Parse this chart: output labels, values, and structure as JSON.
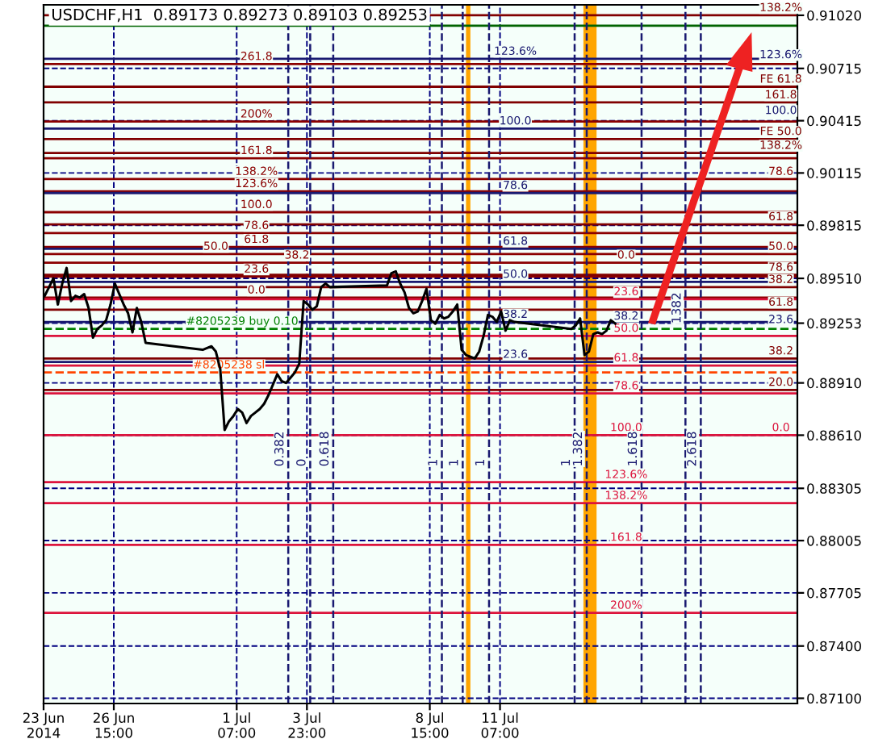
{
  "chart_data": {
    "type": "line",
    "title": "USDCHF,H1  0.89173 0.89273 0.89103 0.89253",
    "x": [
      "2014-06-24T00:00",
      "2014-06-24T04:00",
      "2014-06-24T08:00",
      "2014-06-24T12:00",
      "2014-06-24T16:00",
      "2014-06-24T20:00",
      "2014-06-25T00:00",
      "2014-06-25T04:00",
      "2014-06-25T08:00",
      "2014-06-25T12:00",
      "2014-06-25T16:00",
      "2014-06-25T20:00",
      "2014-06-26T00:00",
      "2014-06-26T04:00",
      "2014-06-26T08:00",
      "2014-06-26T12:00",
      "2014-06-26T16:00",
      "2014-06-26T20:00",
      "2014-06-27T00:00",
      "2014-06-27T04:00",
      "2014-06-27T08:00",
      "2014-06-27T12:00",
      "2014-06-27T16:00",
      "2014-06-27T20:00",
      "2014-06-30T00:00",
      "2014-06-30T04:00",
      "2014-06-30T08:00",
      "2014-06-30T12:00",
      "2014-06-30T16:00",
      "2014-06-30T20:00",
      "2014-07-01T00:00",
      "2014-07-01T04:00",
      "2014-07-01T08:00",
      "2014-07-01T12:00",
      "2014-07-01T16:00",
      "2014-07-01T20:00",
      "2014-07-02T00:00",
      "2014-07-02T04:00",
      "2014-07-02T08:00",
      "2014-07-02T12:00",
      "2014-07-02T16:00",
      "2014-07-02T20:00",
      "2014-07-03T00:00",
      "2014-07-03T04:00",
      "2014-07-03T08:00",
      "2014-07-03T12:00",
      "2014-07-03T16:00",
      "2014-07-03T20:00",
      "2014-07-04T00:00",
      "2014-07-04T04:00",
      "2014-07-04T08:00",
      "2014-07-04T12:00",
      "2014-07-04T16:00",
      "2014-07-04T20:00",
      "2014-07-07T00:00",
      "2014-07-07T04:00",
      "2014-07-07T08:00",
      "2014-07-07T12:00",
      "2014-07-07T16:00",
      "2014-07-07T20:00",
      "2014-07-08T00:00",
      "2014-07-08T04:00",
      "2014-07-08T08:00",
      "2014-07-08T12:00",
      "2014-07-08T16:00",
      "2014-07-08T20:00",
      "2014-07-09T00:00",
      "2014-07-09T04:00",
      "2014-07-09T08:00",
      "2014-07-09T12:00",
      "2014-07-09T16:00",
      "2014-07-09T20:00",
      "2014-07-10T00:00",
      "2014-07-10T04:00",
      "2014-07-10T08:00",
      "2014-07-10T12:00",
      "2014-07-10T16:00",
      "2014-07-10T20:00",
      "2014-07-11T00:00",
      "2014-07-11T04:00",
      "2014-07-11T08:00",
      "2014-07-11T12:00",
      "2014-07-11T16:00",
      "2014-07-11T20:00",
      "2014-07-14T00:00",
      "2014-07-14T04:00",
      "2014-07-14T08:00",
      "2014-07-14T12:00",
      "2014-07-14T16:00",
      "2014-07-14T20:00",
      "2014-07-15T00:00",
      "2014-07-15T04:00",
      "2014-07-15T08:00",
      "2014-07-15T12:00",
      "2014-07-15T16:00"
    ],
    "series": [
      {
        "color": "#000000",
        "values": [
          0.8941,
          0.8946,
          0.8951,
          0.8936,
          0.8948,
          0.8957,
          0.8938,
          0.8941,
          0.894,
          0.8942,
          0.8934,
          0.8917,
          0.8922,
          0.8924,
          0.8927,
          0.8936,
          0.8948,
          0.8942,
          0.8936,
          0.8931,
          0.892,
          0.8934,
          0.8926,
          0.8914,
          0.891,
          0.8911,
          0.8912,
          0.8909,
          0.8899,
          0.8864,
          0.8869,
          0.8872,
          0.8876,
          0.8874,
          0.8868,
          0.8872,
          0.8874,
          0.8876,
          0.8879,
          0.8884,
          0.889,
          0.8896,
          0.8892,
          0.8891,
          0.8894,
          0.8897,
          0.8902,
          0.8938,
          0.8936,
          0.8933,
          0.8935,
          0.8946,
          0.8948,
          0.8946,
          0.8947,
          0.8954,
          0.8955,
          0.8948,
          0.8943,
          0.8934,
          0.8931,
          0.8932,
          0.8938,
          0.8945,
          0.8927,
          0.8925,
          0.893,
          0.8928,
          0.8929,
          0.8932,
          0.8936,
          0.891,
          0.8907,
          0.8906,
          0.8905,
          0.8909,
          0.8918,
          0.893,
          0.8929,
          0.8926,
          0.8932,
          0.8921,
          0.8927,
          0.8926,
          0.8922,
          0.8924,
          0.8928,
          0.8907,
          0.8909,
          0.8919,
          0.892,
          0.8919,
          0.8921,
          0.8927,
          0.8925
        ]
      }
    ],
    "xlim": [
      "2014-06-23T23:00",
      "2014-07-22T14:00"
    ],
    "ylim": [
      0.8707,
      0.9108
    ],
    "xticks": [
      {
        "value": "2014-06-23T23:00",
        "label": "23 Jun 2014"
      },
      {
        "value": "2014-06-26T15:00",
        "label": "26 Jun 15:00"
      },
      {
        "value": "2014-07-01T07:00",
        "label": "1 Jul 07:00"
      },
      {
        "value": "2014-07-03T23:00",
        "label": "3 Jul 23:00"
      },
      {
        "value": "2014-07-08T15:00",
        "label": "8 Jul 15:00"
      },
      {
        "value": "2014-07-11T07:00",
        "label": "11 Jul 07:00"
      }
    ],
    "yticks": [
      {
        "value": 0.9102,
        "label": "0.91020"
      },
      {
        "value": 0.90715,
        "label": "0.90715"
      },
      {
        "value": 0.90415,
        "label": "0.90415"
      },
      {
        "value": 0.90115,
        "label": "0.90115"
      },
      {
        "value": 0.89815,
        "label": "0.89815"
      },
      {
        "value": 0.8951,
        "label": "0.89510"
      },
      {
        "value": 0.89253,
        "label": "0.89253"
      },
      {
        "value": 0.8891,
        "label": "0.88910"
      },
      {
        "value": 0.8861,
        "label": "0.88610"
      },
      {
        "value": 0.88305,
        "label": "0.88305"
      },
      {
        "value": 0.88005,
        "label": "0.88005"
      },
      {
        "value": 0.87705,
        "label": "0.87705"
      },
      {
        "value": 0.874,
        "label": "0.87400"
      },
      {
        "value": 0.871,
        "label": "0.87100"
      }
    ],
    "grid": true,
    "ref_lines": [
      {
        "axis": "y",
        "value": 0.9074,
        "color": "#8b0000"
      },
      {
        "axis": "y",
        "value": 0.9041,
        "color": "#8b0000"
      },
      {
        "axis": "y",
        "value": 0.902,
        "color": "#8b0000"
      },
      {
        "axis": "y",
        "value": 0.9008,
        "color": "#8b0000"
      },
      {
        "axis": "y",
        "value": 0.9001,
        "color": "#8b0000"
      },
      {
        "axis": "y",
        "value": 0.8989,
        "color": "#8b0000"
      },
      {
        "axis": "y",
        "value": 0.8977,
        "color": "#8b0000"
      },
      {
        "axis": "y",
        "value": 0.8969,
        "color": "#8b0000"
      },
      {
        "axis": "y",
        "value": 0.8965,
        "color": "#8b0000"
      },
      {
        "axis": "y",
        "value": 0.896,
        "color": "#8b0000"
      },
      {
        "axis": "y",
        "value": 0.8952,
        "color": "#8b0000"
      },
      {
        "axis": "y",
        "value": 0.894,
        "color": "#8b0000"
      },
      {
        "axis": "y",
        "value": 0.9077,
        "color": "#191970"
      },
      {
        "axis": "y",
        "value": 0.9037,
        "color": "#191970"
      },
      {
        "axis": "y",
        "value": 0.9,
        "color": "#191970"
      },
      {
        "axis": "y",
        "value": 0.8968,
        "color": "#191970"
      },
      {
        "axis": "y",
        "value": 0.8949,
        "color": "#191970"
      },
      {
        "axis": "y",
        "value": 0.8926,
        "color": "#191970"
      },
      {
        "axis": "y",
        "value": 0.8903,
        "color": "#191970"
      },
      {
        "axis": "y",
        "value": 0.8939,
        "color": "#dc143c"
      },
      {
        "axis": "y",
        "value": 0.8918,
        "color": "#dc143c"
      },
      {
        "axis": "y",
        "value": 0.8901,
        "color": "#dc143c"
      },
      {
        "axis": "y",
        "value": 0.8885,
        "color": "#dc143c"
      },
      {
        "axis": "y",
        "value": 0.8861,
        "color": "#dc143c"
      },
      {
        "axis": "y",
        "value": 0.8834,
        "color": "#dc143c"
      },
      {
        "axis": "y",
        "value": 0.8822,
        "color": "#dc143c"
      },
      {
        "axis": "y",
        "value": 0.8798,
        "color": "#dc143c"
      },
      {
        "axis": "y",
        "value": 0.8759,
        "color": "#dc143c"
      },
      {
        "axis": "y",
        "value": 0.9102,
        "color": "#800000"
      },
      {
        "axis": "y",
        "value": 0.9061,
        "color": "#800000"
      },
      {
        "axis": "y",
        "value": 0.9052,
        "color": "#800000"
      },
      {
        "axis": "y",
        "value": 0.9031,
        "color": "#800000"
      },
      {
        "axis": "y",
        "value": 0.9023,
        "color": "#800000"
      },
      {
        "axis": "y",
        "value": 0.8982,
        "color": "#800000"
      },
      {
        "axis": "y",
        "value": 0.8953,
        "color": "#800000"
      },
      {
        "axis": "y",
        "value": 0.8946,
        "color": "#800000"
      },
      {
        "axis": "y",
        "value": 0.8933,
        "color": "#800000"
      },
      {
        "axis": "y",
        "value": 0.8905,
        "color": "#800000"
      },
      {
        "axis": "y",
        "value": 0.8887,
        "color": "#800000"
      },
      {
        "axis": "y",
        "value": 0.8922,
        "color": "#008000",
        "line_style": "dashed"
      },
      {
        "axis": "y",
        "value": 0.8897,
        "color": "#ff4500",
        "line_style": "dashed"
      },
      {
        "axis": "y",
        "value": 0.9096,
        "color": "#006400"
      },
      {
        "axis": "x",
        "value": "2014-07-03T06:00",
        "color": "#191970",
        "line_style": "dashed"
      },
      {
        "axis": "x",
        "value": "2014-07-04T02:00",
        "color": "#191970",
        "line_style": "dashed"
      },
      {
        "axis": "x",
        "value": "2014-07-04T23:00",
        "color": "#191970",
        "line_style": "dashed"
      },
      {
        "axis": "x",
        "value": "2014-07-09T02:00",
        "color": "#191970",
        "line_style": "dashed"
      },
      {
        "axis": "x",
        "value": "2014-07-09T21:00",
        "color": "#191970",
        "line_style": "dashed"
      },
      {
        "axis": "x",
        "value": "2014-07-10T21:00",
        "color": "#191970",
        "line_style": "dashed"
      },
      {
        "axis": "x",
        "value": "2014-07-14T03:00",
        "color": "#191970",
        "line_style": "dashed"
      },
      {
        "axis": "x",
        "value": "2014-07-14T14:00",
        "color": "#191970",
        "line_style": "dashed"
      },
      {
        "axis": "x",
        "value": "2014-07-16T16:00",
        "color": "#191970",
        "line_style": "dashed"
      },
      {
        "axis": "x",
        "value": "2014-07-18T08:00",
        "color": "#191970",
        "line_style": "dashed"
      },
      {
        "axis": "x",
        "value": "2014-07-18T22:00",
        "color": "#191970",
        "line_style": "dashed"
      }
    ],
    "bands": [
      {
        "axis": "x",
        "from": "2014-07-10T00:00",
        "to": "2014-07-10T04:00",
        "color": "#ffa500"
      },
      {
        "axis": "x",
        "from": "2014-07-14T11:00",
        "to": "2014-07-14T23:00",
        "color": "#ffa500"
      }
    ],
    "annotations": [
      {
        "text": "261.8",
        "x": "2014-07-02T01:00",
        "y": 0.9074
      },
      {
        "text": "200%",
        "x": "2014-07-02T01:00",
        "y": 0.9041
      },
      {
        "text": "161.8",
        "x": "2014-07-02T01:00",
        "y": 0.902
      },
      {
        "text": "138.2%",
        "x": "2014-07-02T01:00",
        "y": 0.9008
      },
      {
        "text": "123.6%",
        "x": "2014-07-02T01:00",
        "y": 0.9001
      },
      {
        "text": "100.0",
        "x": "2014-07-02T01:00",
        "y": 0.8989
      },
      {
        "text": "78.6",
        "x": "2014-07-02T01:00",
        "y": 0.8977
      },
      {
        "text": "61.8",
        "x": "2014-07-02T01:00",
        "y": 0.8969
      },
      {
        "text": "50.0",
        "x": "2014-06-30T12:00",
        "y": 0.8965
      },
      {
        "text": "38.2",
        "x": "2014-07-03T14:00",
        "y": 0.896
      },
      {
        "text": "23.6",
        "x": "2014-07-02T01:00",
        "y": 0.8952
      },
      {
        "text": "0.0",
        "x": "2014-07-02T01:00",
        "y": 0.894
      },
      {
        "text": "123.6%",
        "x": "2014-07-11T21:00",
        "y": 0.9077
      },
      {
        "text": "100.0",
        "x": "2014-07-11T21:00",
        "y": 0.9037
      },
      {
        "text": "78.6",
        "x": "2014-07-11T21:00",
        "y": 0.9
      },
      {
        "text": "61.8",
        "x": "2014-07-11T21:00",
        "y": 0.8968
      },
      {
        "text": "50.0",
        "x": "2014-07-11T21:00",
        "y": 0.8949
      },
      {
        "text": "38.2",
        "x": "2014-07-11T21:00",
        "y": 0.8926
      },
      {
        "text": "23.6",
        "x": "2014-07-11T21:00",
        "y": 0.8903
      },
      {
        "text": "0.0",
        "x": "2014-07-16T02:00",
        "y": 0.896
      },
      {
        "text": "23.6",
        "x": "2014-07-16T02:00",
        "y": 0.8939
      },
      {
        "text": "38.2",
        "x": "2014-07-16T02:00",
        "y": 0.8925
      },
      {
        "text": "50.0",
        "x": "2014-07-16T02:00",
        "y": 0.8918
      },
      {
        "text": "61.8",
        "x": "2014-07-16T02:00",
        "y": 0.8901
      },
      {
        "text": "78.6",
        "x": "2014-07-16T02:00",
        "y": 0.8885
      },
      {
        "text": "100.0",
        "x": "2014-07-16T02:00",
        "y": 0.8861
      },
      {
        "text": "123.6%",
        "x": "2014-07-16T02:00",
        "y": 0.8834
      },
      {
        "text": "138.2%",
        "x": "2014-07-16T02:00",
        "y": 0.8822
      },
      {
        "text": "161.8",
        "x": "2014-07-16T02:00",
        "y": 0.8798
      },
      {
        "text": "200%",
        "x": "2014-07-16T02:00",
        "y": 0.8759
      },
      {
        "text": "138.2%",
        "x": "2014-07-21T23:00",
        "y": 0.9102
      },
      {
        "text": "123.6%",
        "x": "2014-07-21T23:00",
        "y": 0.9075
      },
      {
        "text": "FE 61.8",
        "x": "2014-07-21T23:00",
        "y": 0.9061
      },
      {
        "text": "161.8",
        "x": "2014-07-21T23:00",
        "y": 0.9052
      },
      {
        "text": "100.0",
        "x": "2014-07-21T23:00",
        "y": 0.9043
      },
      {
        "text": "FE 50.0",
        "x": "2014-07-21T23:00",
        "y": 0.9031
      },
      {
        "text": "138.2%",
        "x": "2014-07-21T23:00",
        "y": 0.9023
      },
      {
        "text": "78.6",
        "x": "2014-07-21T23:00",
        "y": 0.9008
      },
      {
        "text": "61.8",
        "x": "2014-07-21T23:00",
        "y": 0.8982
      },
      {
        "text": "50.0",
        "x": "2014-07-21T23:00",
        "y": 0.8965
      },
      {
        "text": "78.6",
        "x": "2014-07-21T23:00",
        "y": 0.8953
      },
      {
        "text": "38.2",
        "x": "2014-07-21T23:00",
        "y": 0.8946
      },
      {
        "text": "61.8",
        "x": "2014-07-21T23:00",
        "y": 0.8933
      },
      {
        "text": "23.6",
        "x": "2014-07-21T23:00",
        "y": 0.8923
      },
      {
        "text": "38.2",
        "x": "2014-07-21T23:00",
        "y": 0.8905
      },
      {
        "text": "20.0",
        "x": "2014-07-21T23:00",
        "y": 0.8887
      },
      {
        "text": "0.0",
        "x": "2014-07-21T23:00",
        "y": 0.8861
      },
      {
        "text": "#8205239 buy 0.10",
        "x": "2014-07-01T12:00",
        "y": 0.8922
      },
      {
        "text": "#8205238 sl",
        "x": "2014-07-01T00:00",
        "y": 0.8897
      },
      {
        "text": "0.382",
        "x": "2014-07-03T06:00",
        "y": 0.8843
      },
      {
        "text": "0",
        "x": "2014-07-04T02:00",
        "y": 0.8843
      },
      {
        "text": "0.618",
        "x": "2014-07-04T23:00",
        "y": 0.8843
      },
      {
        "text": "1",
        "x": "2014-07-09T02:00",
        "y": 0.8843
      },
      {
        "text": "1",
        "x": "2014-07-09T21:00",
        "y": 0.8843
      },
      {
        "text": "1",
        "x": "2014-07-10T21:00",
        "y": 0.8843
      },
      {
        "text": "1",
        "x": "2014-07-14T03:00",
        "y": 0.8843
      },
      {
        "text": "1.382",
        "x": "2014-07-14T14:00",
        "y": 0.8843
      },
      {
        "text": "1.618",
        "x": "2014-07-16T16:00",
        "y": 0.8843
      },
      {
        "text": "1382",
        "x": "2014-07-18T08:00",
        "y": 0.8925
      },
      {
        "text": "2.618",
        "x": "2014-07-18T22:00",
        "y": 0.8843
      }
    ]
  }
}
